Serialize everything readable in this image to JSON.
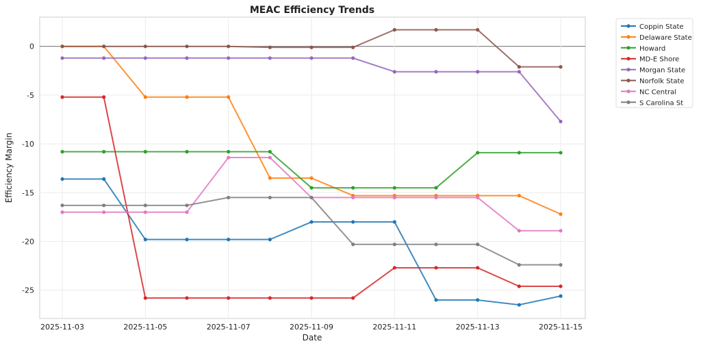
{
  "chart_data": {
    "type": "line",
    "title": "MEAC Efficiency Trends",
    "xlabel": "Date",
    "ylabel": "Efficiency Margin",
    "x": [
      "2025-11-03",
      "2025-11-04",
      "2025-11-05",
      "2025-11-06",
      "2025-11-07",
      "2025-11-08",
      "2025-11-09",
      "2025-11-10",
      "2025-11-11",
      "2025-11-12",
      "2025-11-13",
      "2025-11-14",
      "2025-11-15"
    ],
    "xticks": [
      "2025-11-03",
      "2025-11-05",
      "2025-11-07",
      "2025-11-09",
      "2025-11-11",
      "2025-11-13",
      "2025-11-15"
    ],
    "yticks": [
      0,
      -5,
      -10,
      -15,
      -20,
      -25
    ],
    "ylim": [
      -27.9,
      3.0
    ],
    "grid": true,
    "zero_line": true,
    "legend_placement": "outside-top-right",
    "series": [
      {
        "name": "Coppin State",
        "color": "#1f77b4",
        "values": [
          -13.6,
          -13.6,
          -19.8,
          -19.8,
          -19.8,
          -19.8,
          -18.0,
          -18.0,
          -18.0,
          -26.0,
          -26.0,
          -26.5,
          -25.6
        ]
      },
      {
        "name": "Delaware State",
        "color": "#ff7f0e",
        "values": [
          0,
          0,
          -5.2,
          -5.2,
          -5.2,
          -13.5,
          -13.5,
          -15.3,
          -15.3,
          -15.3,
          -15.3,
          -15.3,
          -17.2
        ]
      },
      {
        "name": "Howard",
        "color": "#2ca02c",
        "values": [
          -10.8,
          -10.8,
          -10.8,
          -10.8,
          -10.8,
          -10.8,
          -14.5,
          -14.5,
          -14.5,
          -14.5,
          -10.9,
          -10.9,
          -10.9
        ]
      },
      {
        "name": "MD-E Shore",
        "color": "#d62728",
        "values": [
          -5.2,
          -5.2,
          -25.8,
          -25.8,
          -25.8,
          -25.8,
          -25.8,
          -25.8,
          -22.7,
          -22.7,
          -22.7,
          -24.6,
          -24.6
        ]
      },
      {
        "name": "Morgan State",
        "color": "#9467bd",
        "values": [
          -1.2,
          -1.2,
          -1.2,
          -1.2,
          -1.2,
          -1.2,
          -1.2,
          -1.2,
          -2.6,
          -2.6,
          -2.6,
          -2.6,
          -7.7
        ]
      },
      {
        "name": "Norfolk State",
        "color": "#8c564b",
        "values": [
          0,
          0,
          0,
          0,
          0,
          -0.1,
          -0.1,
          -0.1,
          1.7,
          1.7,
          1.7,
          -2.1,
          -2.1
        ]
      },
      {
        "name": "NC Central",
        "color": "#e377c2",
        "values": [
          -17.0,
          -17.0,
          -17.0,
          -17.0,
          -11.4,
          -11.4,
          -15.5,
          -15.5,
          -15.5,
          -15.5,
          -15.5,
          -18.9,
          -18.9
        ]
      },
      {
        "name": "S Carolina St",
        "color": "#7f7f7f",
        "values": [
          -16.3,
          -16.3,
          -16.3,
          -16.3,
          -15.5,
          -15.5,
          -15.5,
          -20.3,
          -20.3,
          -20.3,
          -20.3,
          -22.4,
          -22.4
        ]
      }
    ]
  }
}
